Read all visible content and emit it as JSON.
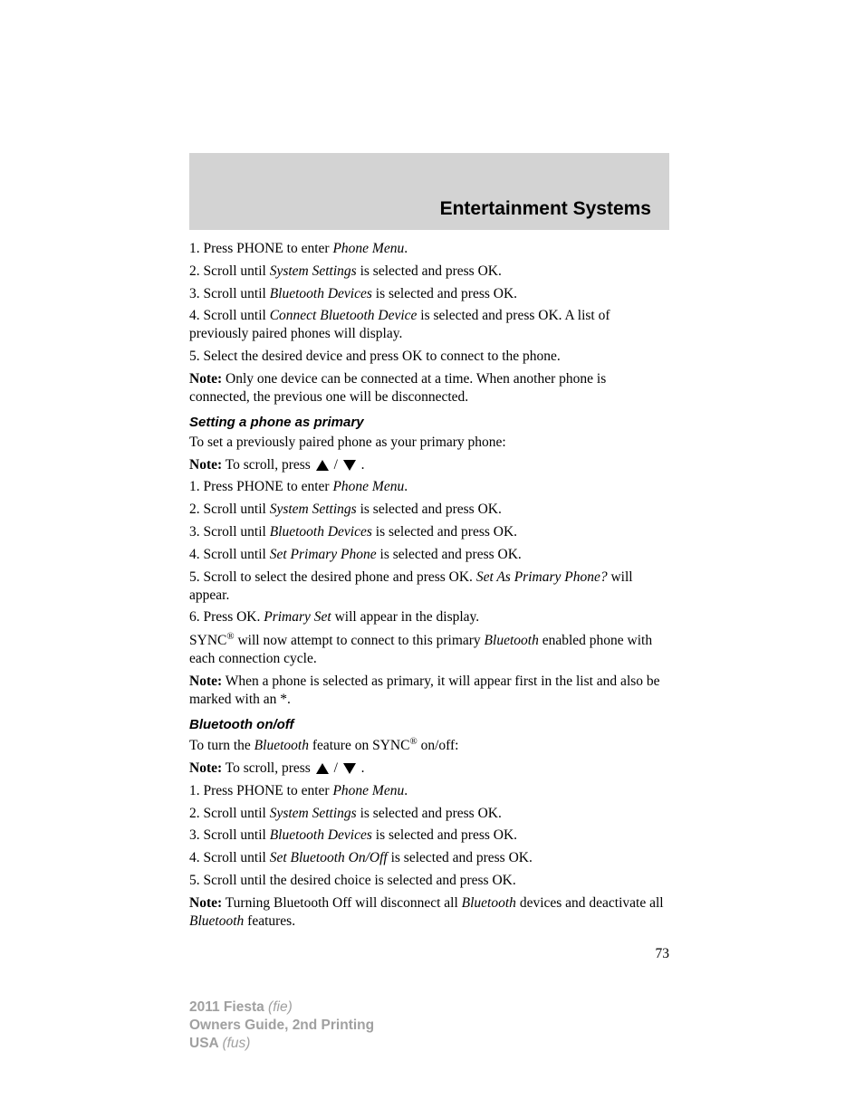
{
  "header": {
    "title": "Entertainment Systems",
    "background_color": "#d3d3d3",
    "title_fontsize": 21
  },
  "content": {
    "section1": {
      "step1_pre": "1. Press PHONE to enter ",
      "step1_italic": "Phone Menu",
      "step1_post": ".",
      "step2_pre": "2. Scroll until ",
      "step2_italic": "System Settings",
      "step2_post": " is selected and press OK.",
      "step3_pre": "3. Scroll until ",
      "step3_italic": "Bluetooth Devices",
      "step3_post": " is selected and press OK.",
      "step4_pre": "4. Scroll until ",
      "step4_italic": "Connect Bluetooth Device",
      "step4_post": " is selected and press OK. A list of previously paired phones will display.",
      "step5": "5. Select the desired device and press OK to connect to the phone.",
      "note_label": "Note:",
      "note_text": " Only one device can be connected at a time. When another phone is connected, the previous one will be disconnected."
    },
    "section2": {
      "heading": "Setting a phone as primary",
      "intro": "To set a previously paired phone as your primary phone:",
      "note1_label": "Note:",
      "note1_text": " To scroll, press ",
      "note1_slash": " / ",
      "note1_post": " .",
      "step1_pre": "1. Press PHONE to enter ",
      "step1_italic": "Phone Menu",
      "step1_post": ".",
      "step2_pre": "2. Scroll until ",
      "step2_italic": "System Settings",
      "step2_post": " is selected and press OK.",
      "step3_pre": "3. Scroll until ",
      "step3_italic": "Bluetooth Devices",
      "step3_post": " is selected and press OK.",
      "step4_pre": "4. Scroll until ",
      "step4_italic": "Set Primary Phone",
      "step4_post": " is selected and press OK.",
      "step5_pre": "5. Scroll to select the desired phone and press OK. ",
      "step5_italic": "Set As Primary Phone?",
      "step5_post": " will appear.",
      "step6_pre": "6. Press OK. ",
      "step6_italic": "Primary Set",
      "step6_post": " will appear in the display.",
      "sync_pre": "SYNC",
      "sync_sup": "®",
      "sync_mid": " will now attempt to connect to this primary ",
      "sync_italic": "Bluetooth",
      "sync_post": " enabled phone with each connection cycle.",
      "note2_label": "Note:",
      "note2_text": " When a phone is selected as primary, it will appear first in the list and also be marked with an *."
    },
    "section3": {
      "heading": "Bluetooth on/off",
      "intro_pre": "To turn the ",
      "intro_italic": "Bluetooth",
      "intro_mid": " feature on SYNC",
      "intro_sup": "®",
      "intro_post": " on/off:",
      "note1_label": "Note:",
      "note1_text": " To scroll, press ",
      "note1_slash": " / ",
      "note1_post": " .",
      "step1_pre": "1. Press PHONE to enter ",
      "step1_italic": "Phone Menu",
      "step1_post": ".",
      "step2_pre": "2. Scroll until ",
      "step2_italic": "System Settings",
      "step2_post": " is selected and press OK.",
      "step3_pre": "3. Scroll until ",
      "step3_italic": "Bluetooth Devices",
      "step3_post": " is selected and press OK.",
      "step4_pre": "4. Scroll until ",
      "step4_italic": "Set Bluetooth On/Off",
      "step4_post": " is selected and press OK.",
      "step5": "5. Scroll until the desired choice is selected and press OK.",
      "note2_label": "Note:",
      "note2_pre": " Turning Bluetooth Off will disconnect all ",
      "note2_italic1": "Bluetooth",
      "note2_mid": " devices and deactivate all ",
      "note2_italic2": "Bluetooth",
      "note2_post": " features."
    },
    "page_number": "73"
  },
  "footer": {
    "line1_bold": "2011 Fiesta ",
    "line1_italic": "(fie)",
    "line2": "Owners Guide, 2nd Printing",
    "line3_bold": "USA ",
    "line3_italic": "(fus)",
    "text_color": "#a0a0a0"
  }
}
